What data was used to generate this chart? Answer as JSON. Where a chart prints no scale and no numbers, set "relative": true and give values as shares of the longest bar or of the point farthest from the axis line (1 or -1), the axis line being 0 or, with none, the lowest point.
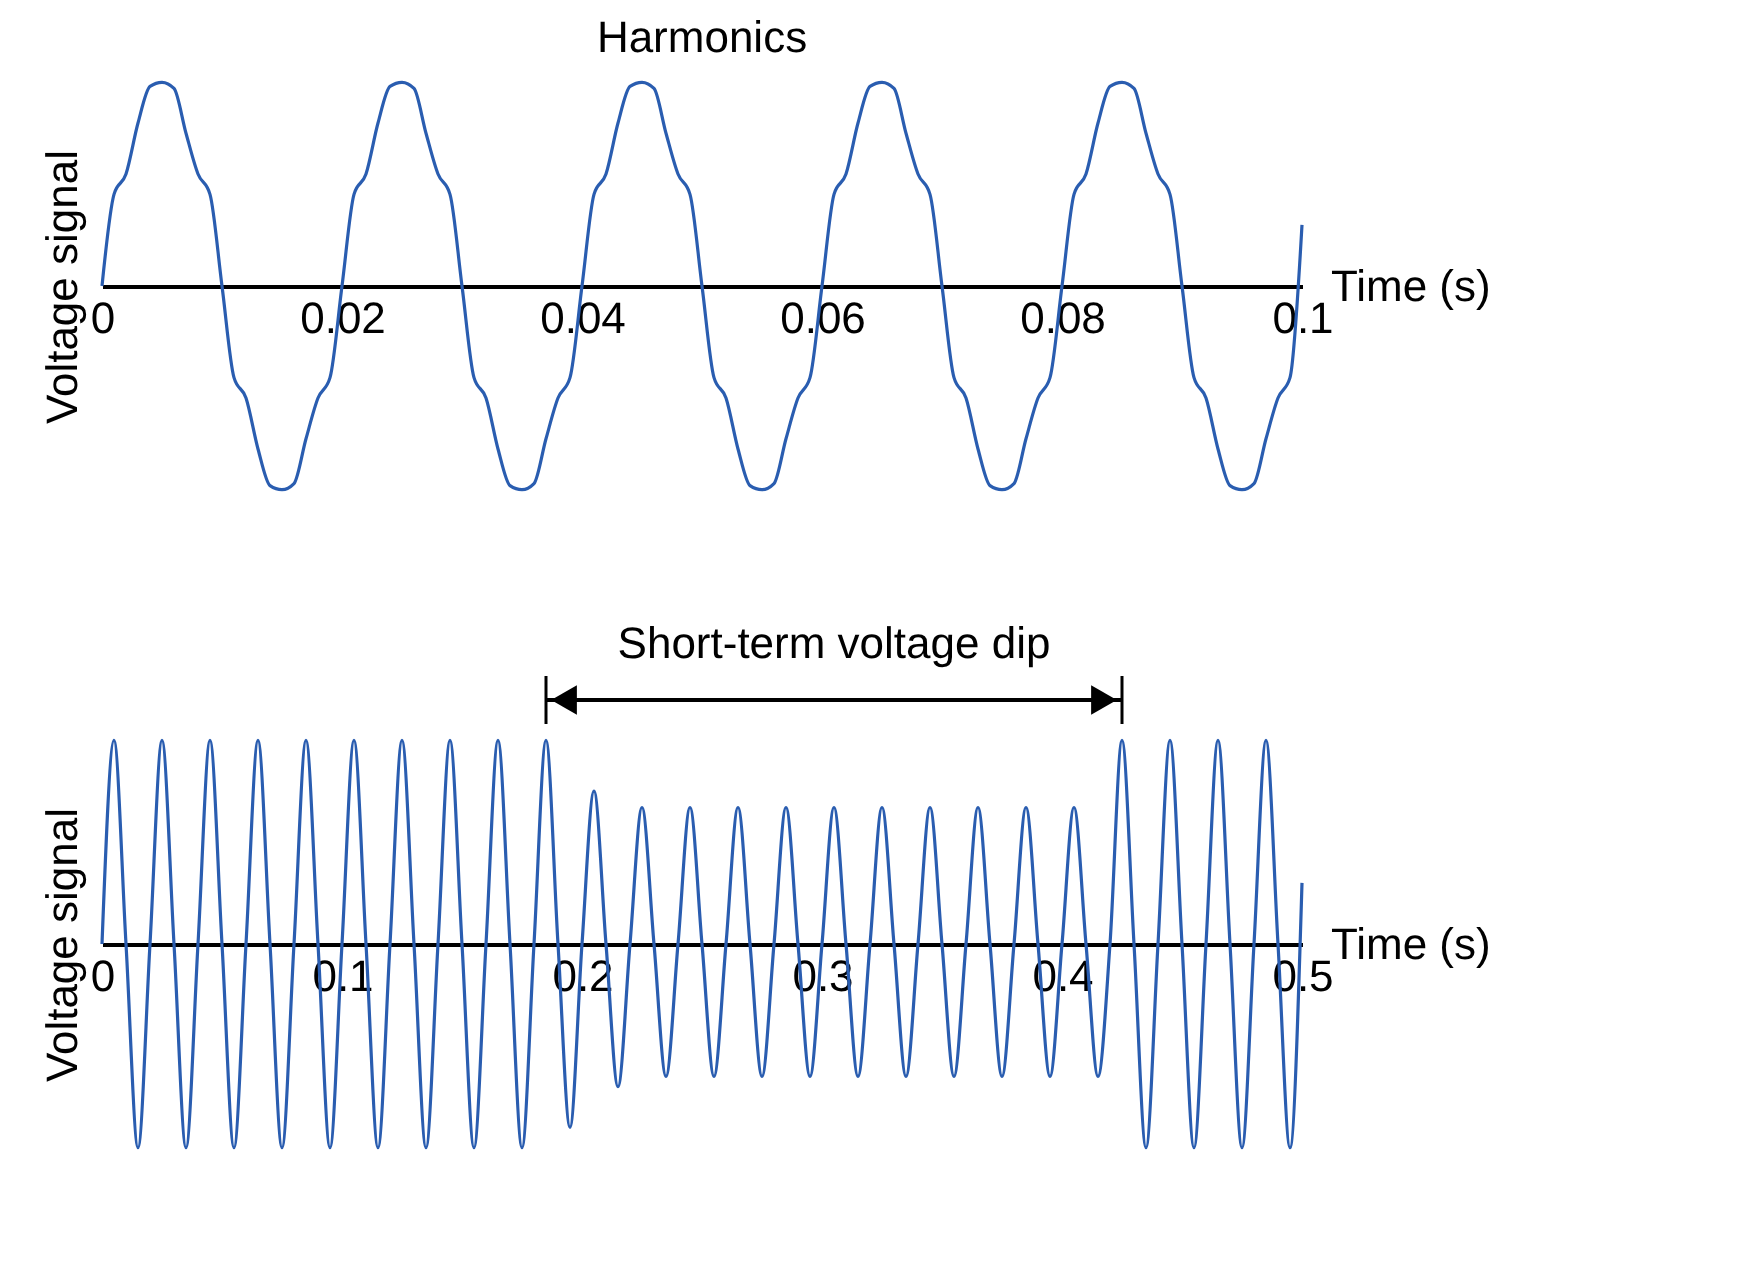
{
  "chart_data": [
    {
      "type": "line",
      "title": "Harmonics",
      "xlabel": "Time (s)",
      "ylabel": "Voltage signal",
      "relative": true,
      "tick_labels": "x",
      "xlim": [
        0,
        0.1
      ],
      "xticks": [
        0,
        0.02,
        0.04,
        0.06,
        0.08,
        0.1
      ],
      "x": [
        0,
        0.001,
        0.002,
        0.003,
        0.004,
        0.005,
        0.006,
        0.007,
        0.008,
        0.009,
        0.01,
        0.011,
        0.012,
        0.013,
        0.014,
        0.015,
        0.016,
        0.017,
        0.018,
        0.019,
        0.02,
        0.021,
        0.022,
        0.023,
        0.024,
        0.025,
        0.026,
        0.027,
        0.028,
        0.029,
        0.03,
        0.031,
        0.032,
        0.033,
        0.034,
        0.035,
        0.036,
        0.037,
        0.038,
        0.039,
        0.04,
        0.041,
        0.042,
        0.043,
        0.044,
        0.045,
        0.046,
        0.047,
        0.048,
        0.049,
        0.05,
        0.051,
        0.052,
        0.053,
        0.054,
        0.055,
        0.056,
        0.057,
        0.058,
        0.059,
        0.06,
        0.061,
        0.062,
        0.063,
        0.064,
        0.065,
        0.066,
        0.067,
        0.068,
        0.069,
        0.07,
        0.071,
        0.072,
        0.073,
        0.074,
        0.075,
        0.076,
        0.077,
        0.078,
        0.079,
        0.08,
        0.081,
        0.082,
        0.083,
        0.084,
        0.085,
        0.086,
        0.087,
        0.088,
        0.089,
        0.09,
        0.091,
        0.092,
        0.093,
        0.094,
        0.095,
        0.096,
        0.097,
        0.098,
        0.099,
        0.1
      ],
      "series": [
        {
          "color": "#2a5db0",
          "values": [
            0,
            0.45,
            0.55,
            0.8,
            0.98,
            1,
            0.97,
            0.75,
            0.55,
            0.45,
            0,
            -0.45,
            -0.55,
            -0.8,
            -0.98,
            -1,
            -0.97,
            -0.75,
            -0.55,
            -0.45,
            0,
            0.45,
            0.55,
            0.8,
            0.98,
            1,
            0.97,
            0.75,
            0.55,
            0.45,
            0,
            -0.45,
            -0.55,
            -0.8,
            -0.98,
            -1,
            -0.97,
            -0.75,
            -0.55,
            -0.45,
            0,
            0.45,
            0.55,
            0.8,
            0.98,
            1,
            0.97,
            0.75,
            0.55,
            0.45,
            0,
            -0.45,
            -0.55,
            -0.8,
            -0.98,
            -1,
            -0.97,
            -0.75,
            -0.55,
            -0.45,
            0,
            0.45,
            0.55,
            0.8,
            0.98,
            1,
            0.97,
            0.75,
            0.55,
            0.45,
            0,
            -0.45,
            -0.55,
            -0.8,
            -0.98,
            -1,
            -0.97,
            -0.75,
            -0.55,
            -0.45,
            0,
            0.45,
            0.55,
            0.8,
            0.98,
            1,
            0.97,
            0.75,
            0.55,
            0.45,
            0,
            -0.45,
            -0.55,
            -0.8,
            -0.98,
            -1,
            -0.97,
            -0.75,
            -0.55,
            -0.45,
            0.3
          ]
        }
      ]
    },
    {
      "type": "line",
      "xlabel": "Time (s)",
      "ylabel": "Voltage signal",
      "relative": true,
      "tick_labels": "x",
      "xlim": [
        0,
        0.5
      ],
      "xticks": [
        0,
        0.1,
        0.2,
        0.3,
        0.4,
        0.5
      ],
      "annotations": [
        "Short-term voltage dip"
      ],
      "x": [
        0,
        0.005,
        0.01,
        0.015,
        0.02,
        0.025,
        0.03,
        0.035,
        0.04,
        0.045,
        0.05,
        0.055,
        0.06,
        0.065,
        0.07,
        0.075,
        0.08,
        0.085,
        0.09,
        0.095,
        0.1,
        0.105,
        0.11,
        0.115,
        0.12,
        0.125,
        0.13,
        0.135,
        0.14,
        0.145,
        0.15,
        0.155,
        0.16,
        0.165,
        0.17,
        0.175,
        0.18,
        0.185,
        0.19,
        0.195,
        0.2,
        0.205,
        0.21,
        0.215,
        0.22,
        0.225,
        0.23,
        0.235,
        0.24,
        0.245,
        0.25,
        0.255,
        0.26,
        0.265,
        0.27,
        0.275,
        0.28,
        0.285,
        0.29,
        0.295,
        0.3,
        0.305,
        0.31,
        0.315,
        0.32,
        0.325,
        0.33,
        0.335,
        0.34,
        0.345,
        0.35,
        0.355,
        0.36,
        0.365,
        0.37,
        0.375,
        0.38,
        0.385,
        0.39,
        0.395,
        0.4,
        0.405,
        0.41,
        0.415,
        0.42,
        0.425,
        0.43,
        0.435,
        0.44,
        0.445,
        0.45,
        0.455,
        0.46,
        0.465,
        0.47,
        0.475,
        0.48,
        0.485,
        0.49,
        0.495,
        0.5
      ],
      "series": [
        {
          "color": "#2a5db0",
          "values": [
            0,
            1,
            0,
            -1,
            0,
            1,
            0,
            -1,
            0,
            1,
            0,
            -1,
            0,
            1,
            0,
            -1,
            0,
            1,
            0,
            -1,
            0,
            1,
            0,
            -1,
            0,
            1,
            0,
            -1,
            0,
            1,
            0,
            -1,
            0,
            1,
            0,
            -1,
            0,
            1,
            0,
            -0.9,
            0,
            0.75,
            0,
            -0.7,
            0,
            0.67,
            0,
            -0.65,
            0,
            0.67,
            0,
            -0.65,
            0,
            0.67,
            0,
            -0.65,
            0,
            0.67,
            0,
            -0.65,
            0,
            0.67,
            0,
            -0.65,
            0,
            0.67,
            0,
            -0.65,
            0,
            0.67,
            0,
            -0.65,
            0,
            0.67,
            0,
            -0.65,
            0,
            0.67,
            0,
            -0.65,
            0,
            0.67,
            0,
            -0.65,
            0,
            1,
            0,
            -1,
            0,
            1,
            0,
            -1,
            0,
            1,
            0,
            -1,
            0,
            1,
            0,
            -1,
            0.3
          ]
        }
      ]
    }
  ]
}
